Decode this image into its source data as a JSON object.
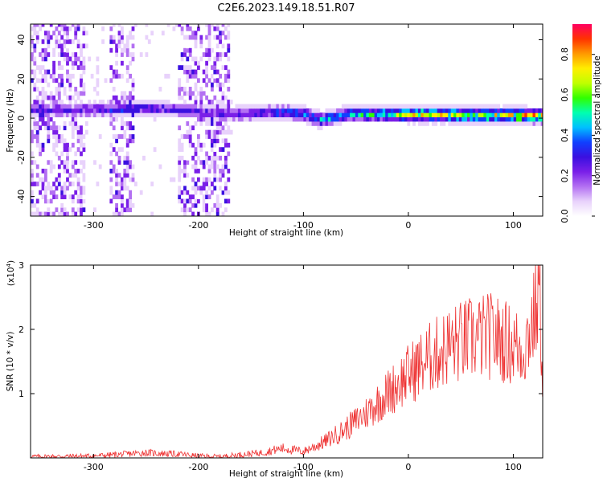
{
  "title": "C2E6.2023.149.18.51.R07",
  "chart_data": [
    {
      "type": "heatmap",
      "xlabel": "Height of straight line (km)",
      "ylabel": "Frequency (Hz)",
      "xlim": [
        -360,
        128
      ],
      "ylim": [
        -50,
        48
      ],
      "xticks": [
        -300,
        -200,
        -100,
        0,
        100
      ],
      "yticks": [
        -40,
        -20,
        0,
        20,
        40
      ],
      "colorbar": {
        "label": "Normalized spectral amplitude",
        "range": [
          0,
          0.95
        ],
        "ticks": [
          "0.0",
          "0.2",
          "0.4",
          "0.6",
          "0.8"
        ],
        "tick_values": [
          0,
          0.2,
          0.4,
          0.6,
          0.8
        ],
        "colormap": [
          "#ffffff",
          "#e8d2fb",
          "#b370f2",
          "#7a1fe8",
          "#3a10e0",
          "#1040ff",
          "#00c0ff",
          "#00ffb0",
          "#30ff00",
          "#c0ff00",
          "#ffee00",
          "#ff9900",
          "#ff3300",
          "#ff0060"
        ]
      },
      "band": {
        "center_hz": [
          [
            -310,
            3
          ],
          [
            -250,
            4
          ],
          [
            -220,
            3
          ],
          [
            -170,
            1
          ],
          [
            -120,
            2
          ],
          [
            -100,
            1
          ],
          [
            -85,
            -2
          ],
          [
            -60,
            1
          ],
          [
            -40,
            1
          ],
          [
            0,
            1
          ],
          [
            128,
            0
          ]
        ],
        "peak_amplitude": [
          [
            -310,
            0.3
          ],
          [
            -260,
            0.35
          ],
          [
            -220,
            0.3
          ],
          [
            -150,
            0.35
          ],
          [
            -100,
            0.45
          ],
          [
            -60,
            0.5
          ],
          [
            -30,
            0.6
          ],
          [
            0,
            0.75
          ],
          [
            128,
            0.85
          ]
        ]
      }
    },
    {
      "type": "line",
      "xlabel": "Height of straight line (km)",
      "ylabel": "SNR (10 * v/v)",
      "scale_label": "(x10",
      "scale_exp": "4",
      "scale_close": ")",
      "xlim": [
        -360,
        128
      ],
      "ylim": [
        0,
        3
      ],
      "xticks": [
        -300,
        -200,
        -100,
        0,
        100
      ],
      "yticks": [
        1,
        2,
        3
      ],
      "color": "#ee3333",
      "x": [
        -360,
        -300,
        -250,
        -220,
        -200,
        -180,
        -140,
        -120,
        -100,
        -80,
        -60,
        -40,
        -20,
        0,
        20,
        40,
        60,
        80,
        100,
        110,
        120,
        125,
        128
      ],
      "y": [
        0.02,
        0.03,
        0.08,
        0.06,
        0.03,
        0.02,
        0.08,
        0.15,
        0.1,
        0.25,
        0.45,
        0.7,
        1.0,
        1.3,
        1.55,
        1.75,
        1.85,
        1.9,
        1.75,
        1.7,
        2.2,
        2.6,
        1.3
      ]
    }
  ]
}
